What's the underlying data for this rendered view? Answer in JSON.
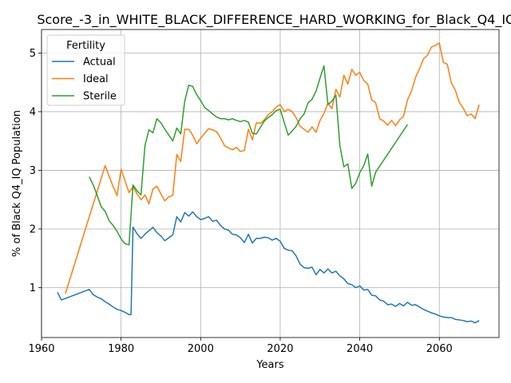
{
  "chart_data": {
    "type": "line",
    "title": "Score_-3_in_WHITE_BLACK_DIFFERENCE_HARD_WORKING_for_Black_Q4_IQ",
    "xlabel": "Years",
    "ylabel": "% of Black Q4_IQ Population",
    "xlim": [
      1960,
      2075
    ],
    "ylim": [
      0.15,
      5.4
    ],
    "xticks": [
      1960,
      1980,
      2000,
      2020,
      2040,
      2060
    ],
    "yticks": [
      1,
      2,
      3,
      4,
      5
    ],
    "grid": true,
    "legend": {
      "title": "Fertility",
      "position": "top-left"
    },
    "series": [
      {
        "name": "Actual",
        "color": "#1f77b4",
        "points": [
          [
            1964,
            0.92
          ],
          [
            1965,
            0.79
          ],
          [
            1972,
            0.97
          ],
          [
            1973,
            0.88
          ],
          [
            1974,
            0.84
          ],
          [
            1975,
            0.81
          ],
          [
            1976,
            0.76
          ],
          [
            1977,
            0.72
          ],
          [
            1978,
            0.67
          ],
          [
            1979,
            0.63
          ],
          [
            1980,
            0.61
          ],
          [
            1981,
            0.58
          ],
          [
            1982,
            0.54
          ],
          [
            1982.5,
            0.54
          ],
          [
            1983,
            2.03
          ],
          [
            1984,
            1.92
          ],
          [
            1985,
            1.84
          ],
          [
            1986,
            1.91
          ],
          [
            1987,
            1.97
          ],
          [
            1988,
            2.03
          ],
          [
            1989,
            1.94
          ],
          [
            1990,
            1.88
          ],
          [
            1991,
            1.8
          ],
          [
            1992,
            1.85
          ],
          [
            1993,
            1.9
          ],
          [
            1994,
            2.21
          ],
          [
            1995,
            2.12
          ],
          [
            1996,
            2.28
          ],
          [
            1997,
            2.22
          ],
          [
            1998,
            2.29
          ],
          [
            1999,
            2.21
          ],
          [
            2000,
            2.16
          ],
          [
            2001,
            2.18
          ],
          [
            2002,
            2.21
          ],
          [
            2003,
            2.13
          ],
          [
            2004,
            2.15
          ],
          [
            2005,
            2.06
          ],
          [
            2006,
            2.0
          ],
          [
            2007,
            1.98
          ],
          [
            2008,
            1.91
          ],
          [
            2009,
            1.9
          ],
          [
            2010,
            1.85
          ],
          [
            2011,
            1.77
          ],
          [
            2012,
            1.91
          ],
          [
            2013,
            1.76
          ],
          [
            2014,
            1.84
          ],
          [
            2015,
            1.84
          ],
          [
            2016,
            1.86
          ],
          [
            2017,
            1.85
          ],
          [
            2018,
            1.81
          ],
          [
            2019,
            1.84
          ],
          [
            2020,
            1.79
          ],
          [
            2021,
            1.67
          ],
          [
            2022,
            1.64
          ],
          [
            2023,
            1.63
          ],
          [
            2024,
            1.54
          ],
          [
            2025,
            1.4
          ],
          [
            2026,
            1.34
          ],
          [
            2027,
            1.33
          ],
          [
            2028,
            1.35
          ],
          [
            2029,
            1.22
          ],
          [
            2030,
            1.31
          ],
          [
            2031,
            1.25
          ],
          [
            2032,
            1.32
          ],
          [
            2033,
            1.25
          ],
          [
            2034,
            1.28
          ],
          [
            2035,
            1.2
          ],
          [
            2036,
            1.15
          ],
          [
            2037,
            1.07
          ],
          [
            2038,
            1.05
          ],
          [
            2039,
            1.0
          ],
          [
            2040,
            1.03
          ],
          [
            2041,
            0.96
          ],
          [
            2042,
            0.97
          ],
          [
            2043,
            0.87
          ],
          [
            2044,
            0.86
          ],
          [
            2045,
            0.79
          ],
          [
            2046,
            0.77
          ],
          [
            2047,
            0.71
          ],
          [
            2048,
            0.72
          ],
          [
            2049,
            0.68
          ],
          [
            2050,
            0.73
          ],
          [
            2051,
            0.69
          ],
          [
            2052,
            0.75
          ],
          [
            2053,
            0.7
          ],
          [
            2054,
            0.71
          ],
          [
            2055,
            0.67
          ],
          [
            2056,
            0.63
          ],
          [
            2057,
            0.6
          ],
          [
            2058,
            0.57
          ],
          [
            2059,
            0.55
          ],
          [
            2060,
            0.52
          ],
          [
            2061,
            0.5
          ],
          [
            2062,
            0.49
          ],
          [
            2063,
            0.49
          ],
          [
            2064,
            0.46
          ],
          [
            2065,
            0.45
          ],
          [
            2066,
            0.44
          ],
          [
            2067,
            0.42
          ],
          [
            2068,
            0.43
          ],
          [
            2069,
            0.4
          ],
          [
            2070,
            0.44
          ]
        ]
      },
      {
        "name": "Ideal",
        "color": "#ff7f0e",
        "points": [
          [
            1966,
            0.9
          ],
          [
            1976,
            3.08
          ],
          [
            1977,
            2.9
          ],
          [
            1978,
            2.72
          ],
          [
            1979,
            2.57
          ],
          [
            1980,
            3.02
          ],
          [
            1981,
            2.82
          ],
          [
            1982,
            2.62
          ],
          [
            1983,
            2.72
          ],
          [
            1984,
            2.6
          ],
          [
            1985,
            2.5
          ],
          [
            1986,
            2.58
          ],
          [
            1987,
            2.43
          ],
          [
            1988,
            2.68
          ],
          [
            1989,
            2.73
          ],
          [
            1990,
            2.6
          ],
          [
            1991,
            2.48
          ],
          [
            1992,
            2.55
          ],
          [
            1993,
            2.57
          ],
          [
            1994,
            3.27
          ],
          [
            1995,
            3.15
          ],
          [
            1996,
            3.7
          ],
          [
            1997,
            3.7
          ],
          [
            1998,
            3.6
          ],
          [
            1999,
            3.45
          ],
          [
            2000,
            3.55
          ],
          [
            2001,
            3.63
          ],
          [
            2002,
            3.71
          ],
          [
            2003,
            3.69
          ],
          [
            2004,
            3.66
          ],
          [
            2005,
            3.55
          ],
          [
            2006,
            3.42
          ],
          [
            2007,
            3.38
          ],
          [
            2008,
            3.35
          ],
          [
            2009,
            3.39
          ],
          [
            2010,
            3.32
          ],
          [
            2011,
            3.34
          ],
          [
            2012,
            3.7
          ],
          [
            2013,
            3.52
          ],
          [
            2014,
            3.81
          ],
          [
            2015,
            3.8
          ],
          [
            2016,
            3.86
          ],
          [
            2017,
            3.95
          ],
          [
            2018,
            4.0
          ],
          [
            2019,
            4.08
          ],
          [
            2020,
            4.12
          ],
          [
            2021,
            4.0
          ],
          [
            2022,
            4.04
          ],
          [
            2023,
            4.0
          ],
          [
            2024,
            3.9
          ],
          [
            2025,
            3.75
          ],
          [
            2026,
            3.7
          ],
          [
            2027,
            3.65
          ],
          [
            2028,
            3.74
          ],
          [
            2029,
            3.65
          ],
          [
            2030,
            3.85
          ],
          [
            2031,
            3.97
          ],
          [
            2032,
            4.15
          ],
          [
            2033,
            4.05
          ],
          [
            2034,
            4.38
          ],
          [
            2035,
            4.25
          ],
          [
            2036,
            4.62
          ],
          [
            2037,
            4.47
          ],
          [
            2038,
            4.72
          ],
          [
            2039,
            4.62
          ],
          [
            2040,
            4.67
          ],
          [
            2041,
            4.53
          ],
          [
            2042,
            4.47
          ],
          [
            2043,
            4.2
          ],
          [
            2044,
            4.15
          ],
          [
            2045,
            3.88
          ],
          [
            2046,
            3.84
          ],
          [
            2047,
            3.77
          ],
          [
            2048,
            3.85
          ],
          [
            2049,
            3.76
          ],
          [
            2050,
            3.86
          ],
          [
            2051,
            3.92
          ],
          [
            2052,
            4.2
          ],
          [
            2053,
            4.35
          ],
          [
            2054,
            4.58
          ],
          [
            2055,
            4.73
          ],
          [
            2056,
            4.9
          ],
          [
            2057,
            4.96
          ],
          [
            2058,
            5.1
          ],
          [
            2059,
            5.13
          ],
          [
            2060,
            5.17
          ],
          [
            2061,
            4.84
          ],
          [
            2062,
            4.81
          ],
          [
            2063,
            4.49
          ],
          [
            2064,
            4.37
          ],
          [
            2065,
            4.16
          ],
          [
            2066,
            4.06
          ],
          [
            2067,
            3.93
          ],
          [
            2068,
            3.96
          ],
          [
            2069,
            3.88
          ],
          [
            2070,
            4.12
          ]
        ]
      },
      {
        "name": "Sterile",
        "color": "#2ca02c",
        "points": [
          [
            1972,
            2.89
          ],
          [
            1973,
            2.75
          ],
          [
            1974,
            2.57
          ],
          [
            1975,
            2.38
          ],
          [
            1976,
            2.3
          ],
          [
            1977,
            2.14
          ],
          [
            1978,
            2.06
          ],
          [
            1979,
            1.96
          ],
          [
            1980,
            1.83
          ],
          [
            1981,
            1.75
          ],
          [
            1982,
            1.73
          ],
          [
            1983,
            2.75
          ],
          [
            1984,
            2.65
          ],
          [
            1985,
            2.58
          ],
          [
            1986,
            3.42
          ],
          [
            1987,
            3.69
          ],
          [
            1988,
            3.64
          ],
          [
            1989,
            3.88
          ],
          [
            1990,
            3.81
          ],
          [
            1991,
            3.7
          ],
          [
            1992,
            3.6
          ],
          [
            1993,
            3.5
          ],
          [
            1994,
            3.72
          ],
          [
            1995,
            3.62
          ],
          [
            1996,
            4.18
          ],
          [
            1997,
            4.45
          ],
          [
            1998,
            4.43
          ],
          [
            1999,
            4.29
          ],
          [
            2000,
            4.19
          ],
          [
            2001,
            4.07
          ],
          [
            2002,
            4.02
          ],
          [
            2003,
            3.96
          ],
          [
            2004,
            3.91
          ],
          [
            2005,
            3.88
          ],
          [
            2006,
            3.88
          ],
          [
            2007,
            3.86
          ],
          [
            2008,
            3.88
          ],
          [
            2009,
            3.85
          ],
          [
            2010,
            3.83
          ],
          [
            2011,
            3.85
          ],
          [
            2012,
            3.82
          ],
          [
            2013,
            3.63
          ],
          [
            2014,
            3.62
          ],
          [
            2015,
            3.73
          ],
          [
            2016,
            3.84
          ],
          [
            2017,
            3.9
          ],
          [
            2018,
            3.95
          ],
          [
            2019,
            4.02
          ],
          [
            2020,
            4.04
          ],
          [
            2021,
            3.82
          ],
          [
            2022,
            3.6
          ],
          [
            2023,
            3.67
          ],
          [
            2024,
            3.75
          ],
          [
            2025,
            3.88
          ],
          [
            2026,
            3.96
          ],
          [
            2027,
            4.15
          ],
          [
            2028,
            4.21
          ],
          [
            2029,
            4.35
          ],
          [
            2030,
            4.57
          ],
          [
            2031,
            4.78
          ],
          [
            2032,
            4.12
          ],
          [
            2033,
            4.18
          ],
          [
            2034,
            4.28
          ],
          [
            2035,
            3.42
          ],
          [
            2036,
            3.06
          ],
          [
            2037,
            3.11
          ],
          [
            2038,
            2.69
          ],
          [
            2039,
            2.78
          ],
          [
            2040,
            2.96
          ],
          [
            2041,
            3.08
          ],
          [
            2042,
            3.28
          ],
          [
            2043,
            2.73
          ],
          [
            2044,
            2.97
          ],
          [
            2052,
            3.78
          ]
        ]
      }
    ]
  }
}
